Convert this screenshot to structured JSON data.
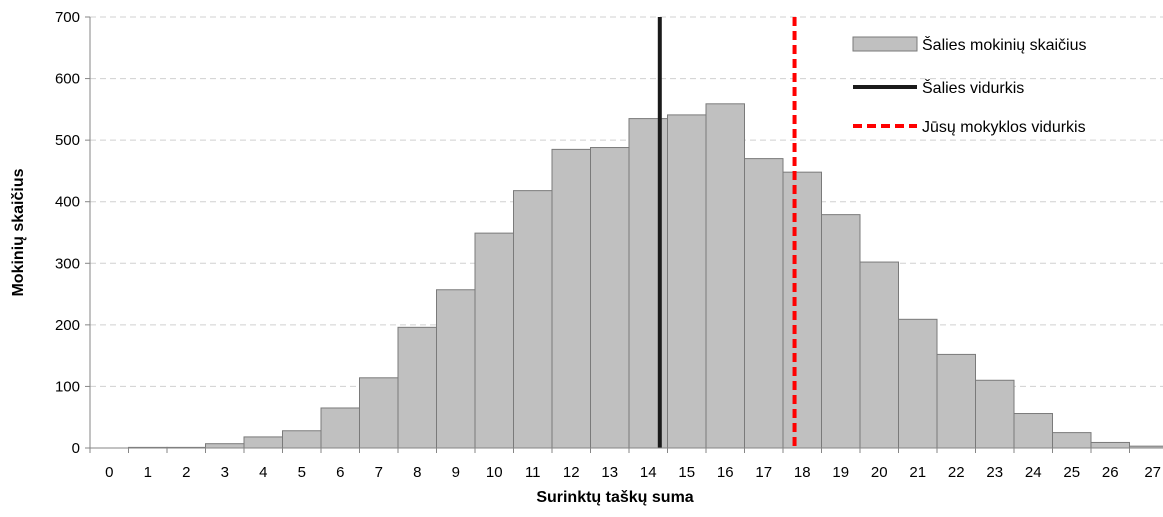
{
  "chart_data": {
    "type": "bar",
    "xlabel": "Surinktų taškų suma",
    "ylabel": "Mokinių skaičius",
    "ylim": [
      0,
      700
    ],
    "yticks": [
      0,
      100,
      200,
      300,
      400,
      500,
      600,
      700
    ],
    "grid": "horizontal dashed",
    "categories": [
      "0",
      "1",
      "2",
      "3",
      "4",
      "5",
      "6",
      "7",
      "8",
      "9",
      "10",
      "11",
      "12",
      "13",
      "14",
      "15",
      "16",
      "17",
      "18",
      "19",
      "20",
      "21",
      "22",
      "23",
      "24",
      "25",
      "26",
      "27"
    ],
    "series": [
      {
        "name": "Šalies mokinių skaičius",
        "color": "#c0c0c0",
        "values": [
          0,
          1,
          1,
          7,
          18,
          28,
          65,
          114,
          196,
          257,
          349,
          418,
          485,
          488,
          535,
          541,
          559,
          470,
          448,
          379,
          302,
          209,
          152,
          110,
          56,
          25,
          9,
          3
        ]
      }
    ],
    "reference_lines": [
      {
        "name": "Šalies vidurkis",
        "x": 14.8,
        "style": "solid",
        "color": "#1a1a1a"
      },
      {
        "name": "Jūsų mokyklos vidurkis",
        "x": 18.3,
        "style": "dashed",
        "color": "#ff0000"
      }
    ],
    "legend_position": "top-right"
  }
}
